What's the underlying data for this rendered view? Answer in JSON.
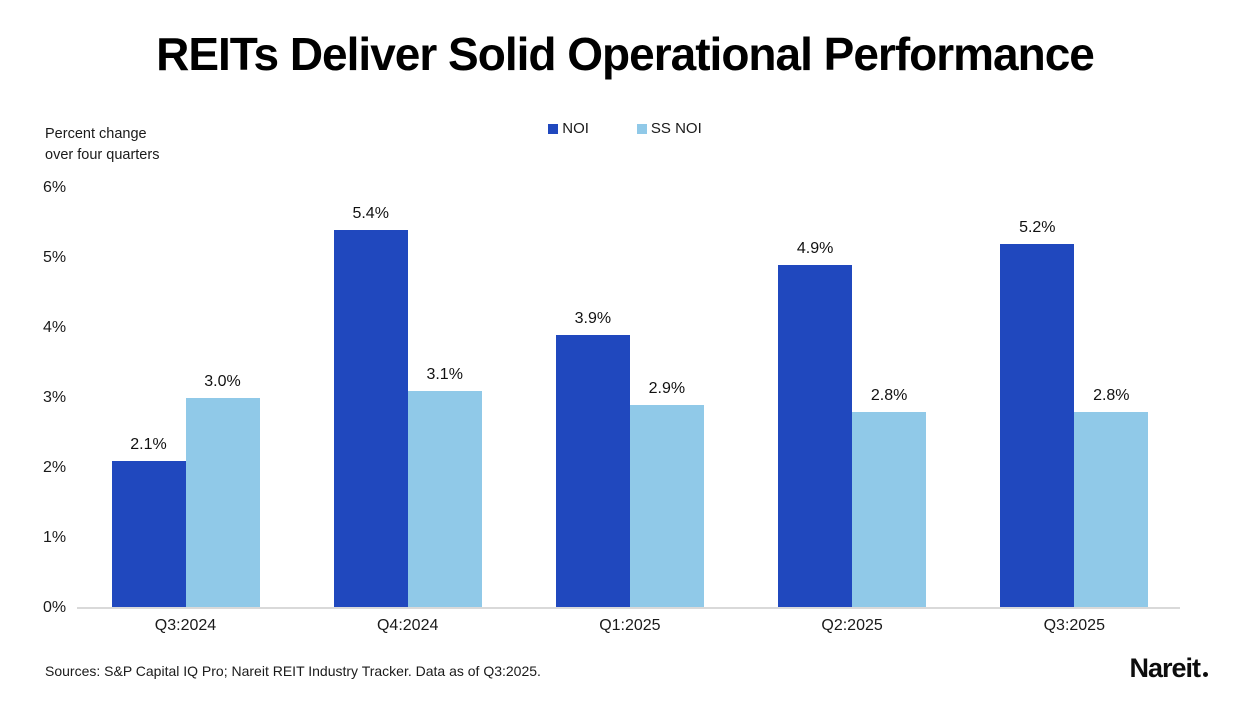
{
  "header": {
    "title": "REITs Deliver Solid Operational Performance"
  },
  "axis_note": {
    "line1": "Percent change",
    "line2": "over four quarters"
  },
  "source": "Sources: S&P Capital IQ Pro; Nareit REIT Industry Tracker. Data as of Q3:2025.",
  "brand": {
    "logo_text": "Nareit"
  },
  "colors": {
    "noi": "#2048BE",
    "ss_noi": "#90C9E8",
    "axis_line": "#d9d9d9",
    "text": "#000000"
  },
  "chart_data": {
    "type": "bar",
    "title": "REITs Deliver Solid Operational Performance",
    "categories": [
      "Q3:2024",
      "Q4:2024",
      "Q1:2025",
      "Q2:2025",
      "Q3:2025"
    ],
    "series": [
      {
        "name": "NOI",
        "color": "#2048BE",
        "values": [
          2.1,
          5.4,
          3.9,
          4.9,
          5.2
        ],
        "labels": [
          "2.1%",
          "5.4%",
          "3.9%",
          "4.9%",
          "5.2%"
        ]
      },
      {
        "name": "SS NOI",
        "color": "#90C9E8",
        "values": [
          3.0,
          3.1,
          2.9,
          2.8,
          2.8
        ],
        "labels": [
          "3.0%",
          "3.1%",
          "2.9%",
          "2.8%",
          "2.8%"
        ]
      }
    ],
    "xlabel": "",
    "ylabel": "Percent change over four quarters",
    "y_ticks": [
      "0%",
      "1%",
      "2%",
      "3%",
      "4%",
      "5%",
      "6%"
    ],
    "ylim": [
      0,
      6
    ],
    "grid": false,
    "legend_position": "top-center",
    "value_labels_shown": true
  }
}
